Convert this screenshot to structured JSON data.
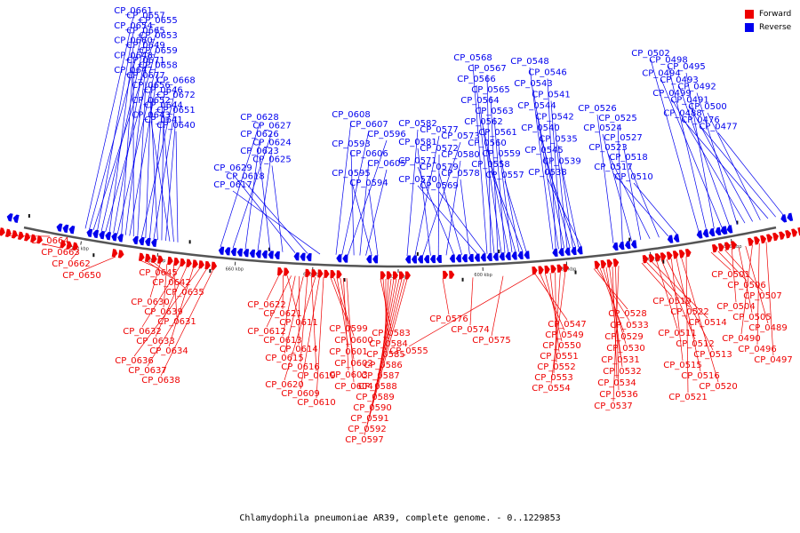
{
  "title": "Chlamydophila pneumoniae AR39, complete genome. - 0..1229853",
  "legend": [
    {
      "label": "Forward",
      "color": "#ee0000"
    },
    {
      "label": "Reverse",
      "color": "#0000ee"
    }
  ],
  "ticks": [
    "700 kbp",
    "680 kbp",
    "660 kbp",
    "640 kbp",
    "620 kbp",
    "600 kbp",
    "580 kbp",
    "560 kbp",
    "540 kbp"
  ],
  "reverse_labels": [
    "CP_0661",
    "CP_0657",
    "CP_0655",
    "CP_0654",
    "CP_0665",
    "CP_0653",
    "CP_0660",
    "CP_0649",
    "CP_0659",
    "CP_0648",
    "CP_0671",
    "CP_0658",
    "CP_0647",
    "CP_0677",
    "CP_0668",
    "CP_0656",
    "CP_0646",
    "CP_0672",
    "CP_0652",
    "CP_0644",
    "CP_0651",
    "CP_0643",
    "CP_0641",
    "CP_0640",
    "CP_0628",
    "CP_0627",
    "CP_0626",
    "CP_0624",
    "CP_0623",
    "CP_0625",
    "CP_0629",
    "CP_0618",
    "CP_0617",
    "CP_0608",
    "CP_0607",
    "CP_0596",
    "CP_0593",
    "CP_0606",
    "CP_0605",
    "CP_0595",
    "CP_0594",
    "CP_0582",
    "CP_0577",
    "CP_0573",
    "CP_0581",
    "CP_0572",
    "CP_0580",
    "CP_0571",
    "CP_0579",
    "CP_0578",
    "CP_0570",
    "CP_0569",
    "CP_0568",
    "CP_0567",
    "CP_0566",
    "CP_0565",
    "CP_0564",
    "CP_0563",
    "CP_0562",
    "CP_0561",
    "CP_0560",
    "CP_0559",
    "CP_0558",
    "CP_0557",
    "CP_0548",
    "CP_0546",
    "CP_0543",
    "CP_0541",
    "CP_0544",
    "CP_0542",
    "CP_0540",
    "CP_0535",
    "CP_0545",
    "CP_0539",
    "CP_0538",
    "CP_0526",
    "CP_0525",
    "CP_0524",
    "CP_0527",
    "CP_0523",
    "CP_0518",
    "CP_0517",
    "CP_0510",
    "CP_0502",
    "CP_0498",
    "CP_0495",
    "CP_0494",
    "CP_0493",
    "CP_0492",
    "CP_0499",
    "CP_0491",
    "CP_0500",
    "CP_0488",
    "CP_0476",
    "CP_0477"
  ],
  "forward_labels": [
    "CP_0664",
    "CP_0663",
    "CP_0662",
    "CP_0650",
    "CP_0645",
    "CP_0642",
    "CP_0635",
    "CP_0630",
    "CP_0639",
    "CP_0631",
    "CP_0632",
    "CP_0633",
    "CP_0634",
    "CP_0636",
    "CP_0637",
    "CP_0638",
    "CP_0622",
    "CP_0621",
    "CP_0611",
    "CP_0612",
    "CP_0613",
    "CP_0614",
    "CP_0615",
    "CP_0616",
    "CP_0619",
    "CP_0620",
    "CP_0609",
    "CP_0610",
    "CP_0599",
    "CP_0600",
    "CP_0601",
    "CP_0602",
    "CP_0603",
    "CP_0604",
    "CP_0583",
    "CP_0584",
    "CP_0585",
    "CP_0586",
    "CP_0587",
    "CP_0588",
    "CP_0589",
    "CP_0590",
    "CP_0591",
    "CP_0592",
    "CP_0597",
    "CP_0576",
    "CP_0574",
    "CP_0575",
    "CP_0555",
    "CP_0547",
    "CP_0549",
    "CP_0550",
    "CP_0551",
    "CP_0552",
    "CP_0553",
    "CP_0554",
    "CP_0528",
    "CP_0533",
    "CP_0529",
    "CP_0530",
    "CP_0531",
    "CP_0532",
    "CP_0534",
    "CP_0536",
    "CP_0537",
    "CP_0519",
    "CP_0522",
    "CP_0514",
    "CP_0511",
    "CP_0512",
    "CP_0513",
    "CP_0515",
    "CP_0516",
    "CP_0520",
    "CP_0521",
    "CP_0501",
    "CP_0506",
    "CP_0507",
    "CP_0504",
    "CP_0505",
    "CP_0489",
    "CP_0490",
    "CP_0496",
    "CP_0497"
  ]
}
